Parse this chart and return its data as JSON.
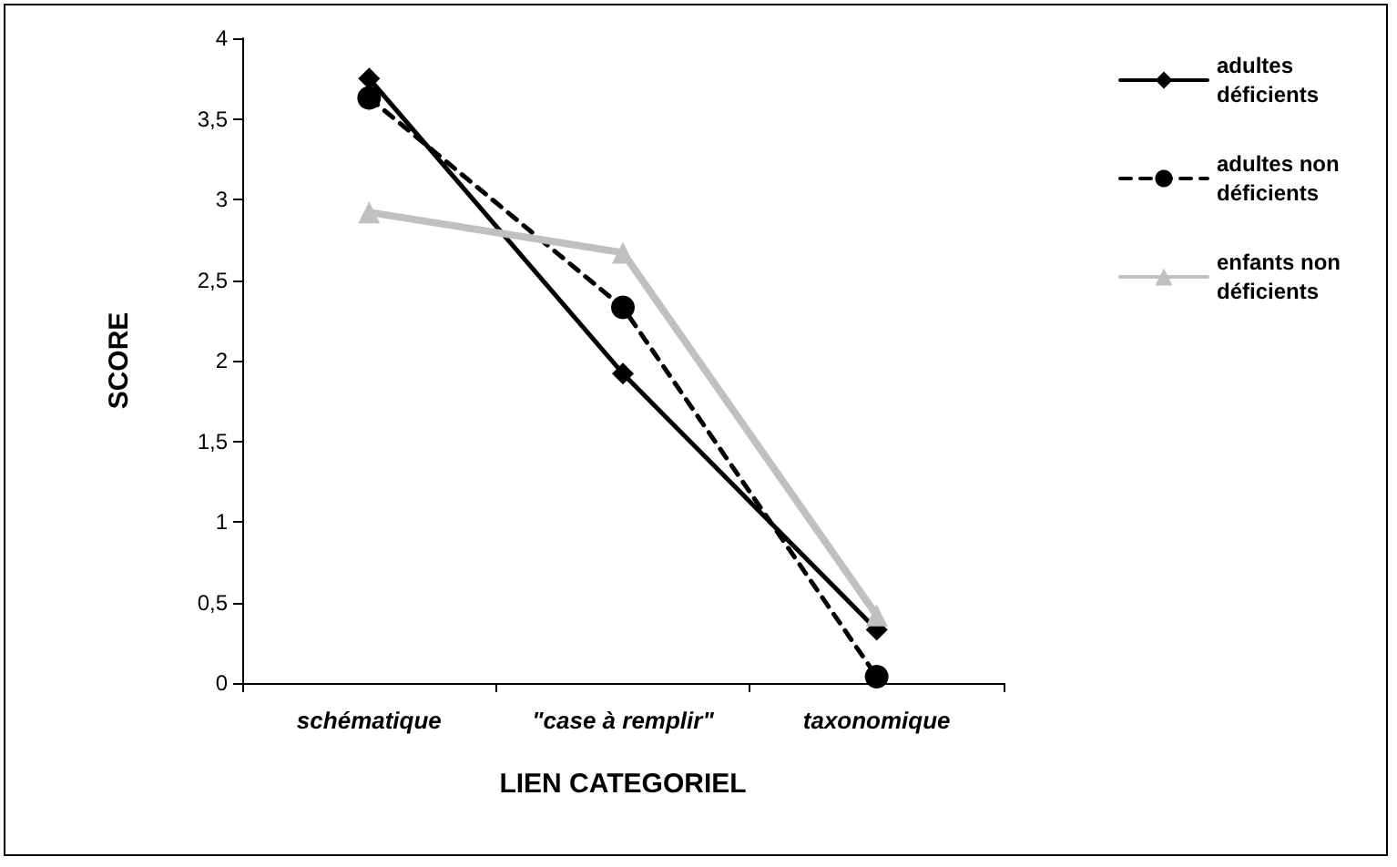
{
  "chart_data": {
    "type": "line",
    "xlabel": "LIEN CATEGORIEL",
    "ylabel": "SCORE",
    "categories": [
      "schématique",
      "\"case à remplir\"",
      "taxonomique"
    ],
    "series": [
      {
        "name": "adultes déficients",
        "color": "#000000",
        "values": [
          3.75,
          1.92,
          0.33
        ],
        "marker": "diamond",
        "line_style": "solid"
      },
      {
        "name": "adultes non déficients",
        "color": "#000000",
        "values": [
          3.63,
          2.33,
          0.04
        ],
        "marker": "circle",
        "line_style": "dashed"
      },
      {
        "name": "enfants non déficients",
        "color": "#c0c0c0",
        "values": [
          2.92,
          2.67,
          0.42
        ],
        "marker": "triangle",
        "line_style": "solid"
      }
    ],
    "ylim": [
      0,
      4
    ],
    "yticks": [
      0,
      {
        "value": 0.5,
        "label": "0,5"
      },
      1,
      {
        "value": 1.5,
        "label": "1,5"
      },
      2,
      {
        "value": 2.5,
        "label": "2,5"
      },
      3,
      {
        "value": 3.5,
        "label": "3,5"
      },
      4
    ],
    "grid": false,
    "legend": "right"
  }
}
